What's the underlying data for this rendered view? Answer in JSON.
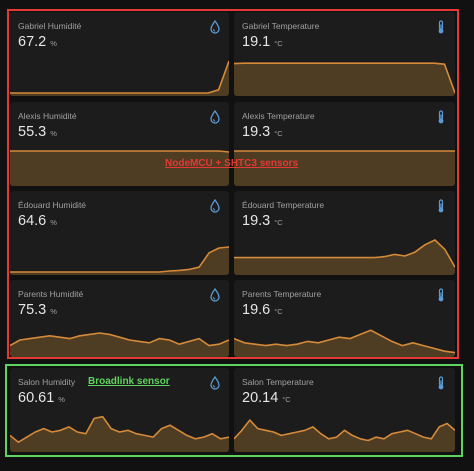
{
  "colors": {
    "accent": "#d58a3a",
    "fill": "#4e3d22",
    "red_box": "#e53935",
    "green_box": "#5fd35f",
    "icon": "#5b9bd5"
  },
  "annotations": {
    "nodemcu_label": "NodeMCU + SHTC3 sensors",
    "broadlink_label": "Broadlink sensor"
  },
  "cards": [
    {
      "name": "Gabriel Humidité",
      "value": "67.2",
      "unit": "%",
      "icon": "water-drop-icon",
      "trend": [
        0,
        0,
        0,
        0,
        0,
        0,
        0,
        0,
        0,
        0,
        0,
        0,
        0,
        0,
        0,
        0,
        0,
        0,
        0,
        0,
        0.1,
        1
      ]
    },
    {
      "name": "Gabriel Temperature",
      "value": "19.1",
      "unit": "°C",
      "icon": "thermometer-icon",
      "trend": [
        0.92,
        0.93,
        0.93,
        0.93,
        0.93,
        0.93,
        0.93,
        0.93,
        0.93,
        0.93,
        0.93,
        0.93,
        0.93,
        0.93,
        0.93,
        0.93,
        0.93,
        0.93,
        0.93,
        0.93,
        0.9,
        0
      ]
    },
    {
      "name": "Alexis Humidité",
      "value": "55.3",
      "unit": "%",
      "icon": "water-drop-icon",
      "trend": [
        1,
        1,
        1,
        1,
        1,
        1,
        1,
        1,
        1,
        1,
        1,
        1,
        1,
        1,
        1,
        1,
        1,
        1,
        1,
        1,
        1,
        1,
        0.97
      ]
    },
    {
      "name": "Alexis Temperature",
      "value": "19.3",
      "unit": "°C",
      "icon": "thermometer-icon",
      "trend": [
        1,
        1,
        1,
        1,
        1,
        1,
        1,
        1,
        1,
        1,
        1,
        1,
        1,
        1,
        1,
        1,
        1,
        1,
        1,
        1,
        1,
        1,
        1
      ]
    },
    {
      "name": "Édouard Humidité",
      "value": "64.6",
      "unit": "%",
      "icon": "water-drop-icon",
      "trend": [
        0,
        0,
        0,
        0,
        0,
        0,
        0,
        0,
        0,
        0,
        0,
        0,
        0,
        0,
        0,
        0,
        0.03,
        0.05,
        0.08,
        0.15,
        0.6,
        0.75,
        0.78
      ]
    },
    {
      "name": "Édouard Temperature",
      "value": "19.3",
      "unit": "°C",
      "icon": "thermometer-icon",
      "trend": [
        0.45,
        0.45,
        0.45,
        0.45,
        0.45,
        0.45,
        0.45,
        0.45,
        0.45,
        0.45,
        0.45,
        0.45,
        0.45,
        0.45,
        0.45,
        0.48,
        0.55,
        0.5,
        0.62,
        0.85,
        1,
        0.7,
        0.15
      ]
    },
    {
      "name": "Parents Humidité",
      "value": "75.3",
      "unit": "%",
      "icon": "water-drop-icon",
      "trend": [
        0.3,
        0.5,
        0.55,
        0.6,
        0.65,
        0.6,
        0.55,
        0.65,
        0.7,
        0.75,
        0.7,
        0.6,
        0.5,
        0.45,
        0.4,
        0.55,
        0.5,
        0.35,
        0.45,
        0.55,
        0.3,
        0.35,
        0.5
      ]
    },
    {
      "name": "Parents Temperature",
      "value": "19.6",
      "unit": "°C",
      "icon": "thermometer-icon",
      "trend": [
        0.55,
        0.4,
        0.35,
        0.3,
        0.35,
        0.3,
        0.35,
        0.45,
        0.4,
        0.5,
        0.6,
        0.55,
        0.7,
        0.85,
        0.65,
        0.45,
        0.3,
        0.4,
        0.3,
        0.2,
        0.1,
        0.05
      ]
    },
    {
      "name": "Salon Humidity",
      "value": "60.61",
      "unit": "%",
      "icon": "water-drop-icon",
      "trend": [
        0.4,
        0.2,
        0.35,
        0.5,
        0.6,
        0.5,
        0.55,
        0.65,
        0.5,
        0.45,
        0.9,
        0.95,
        0.6,
        0.5,
        0.55,
        0.45,
        0.4,
        0.35,
        0.6,
        0.7,
        0.55,
        0.4,
        0.3,
        0.35,
        0.45,
        0.3,
        0.35
      ]
    },
    {
      "name": "Salon Temperature",
      "value": "20.14",
      "unit": "°C",
      "icon": "thermometer-icon",
      "trend": [
        0.3,
        0.55,
        0.85,
        0.6,
        0.55,
        0.5,
        0.4,
        0.45,
        0.5,
        0.55,
        0.65,
        0.45,
        0.3,
        0.35,
        0.55,
        0.4,
        0.3,
        0.25,
        0.35,
        0.3,
        0.45,
        0.5,
        0.55,
        0.45,
        0.35,
        0.3,
        0.65,
        0.75,
        0.55
      ]
    }
  ]
}
